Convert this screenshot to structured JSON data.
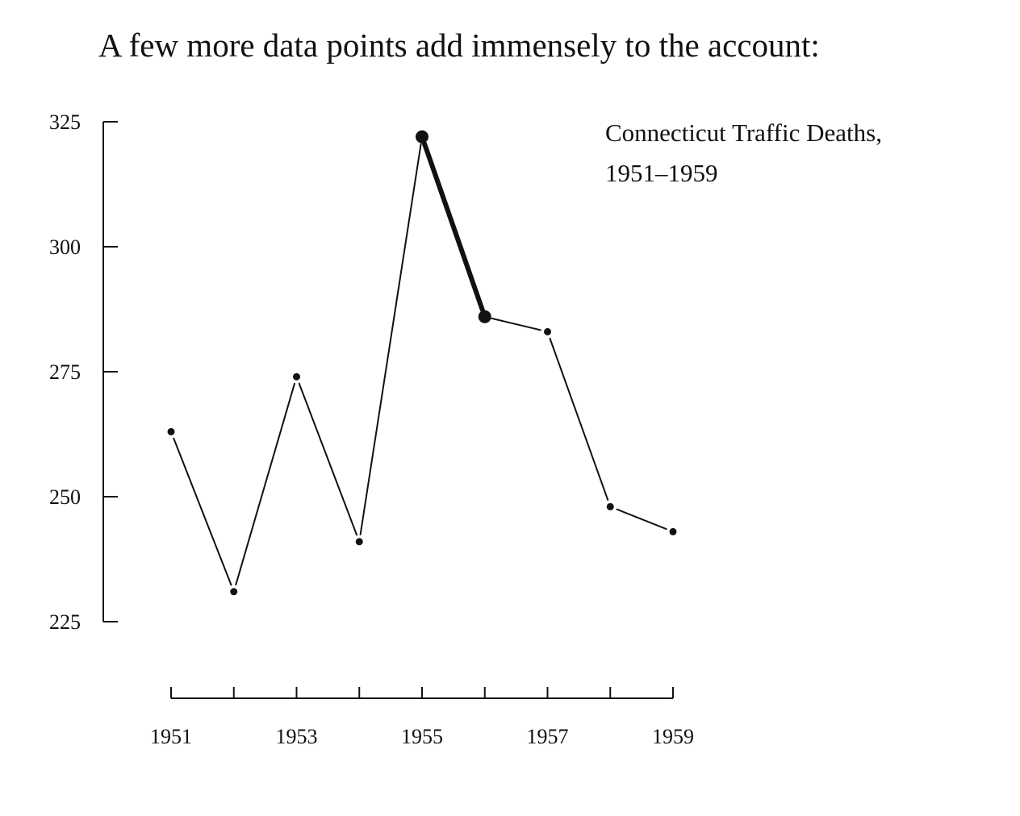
{
  "intro_text": "A few more data points add immensely to the account:",
  "chart_data": {
    "type": "line",
    "title_lines": [
      "Connecticut Traffic Deaths,",
      "1951–1959"
    ],
    "x": [
      1951,
      1952,
      1953,
      1954,
      1955,
      1956,
      1957,
      1958,
      1959
    ],
    "series": [
      {
        "values": [
          263,
          231,
          274,
          241,
          322,
          286,
          283,
          248,
          243
        ]
      }
    ],
    "highlight_points": [
      1955,
      1956
    ],
    "y_ticks": [
      225,
      250,
      275,
      300,
      325
    ],
    "x_tick_labels": [
      "1951",
      "1953",
      "1955",
      "1957",
      "1959"
    ],
    "ylim": [
      225,
      325
    ],
    "xlim": [
      1951,
      1959
    ],
    "grid": false,
    "legend": "none",
    "xlabel": "",
    "ylabel": "",
    "colors": {
      "line": "#111111",
      "axis": "#111111"
    }
  }
}
